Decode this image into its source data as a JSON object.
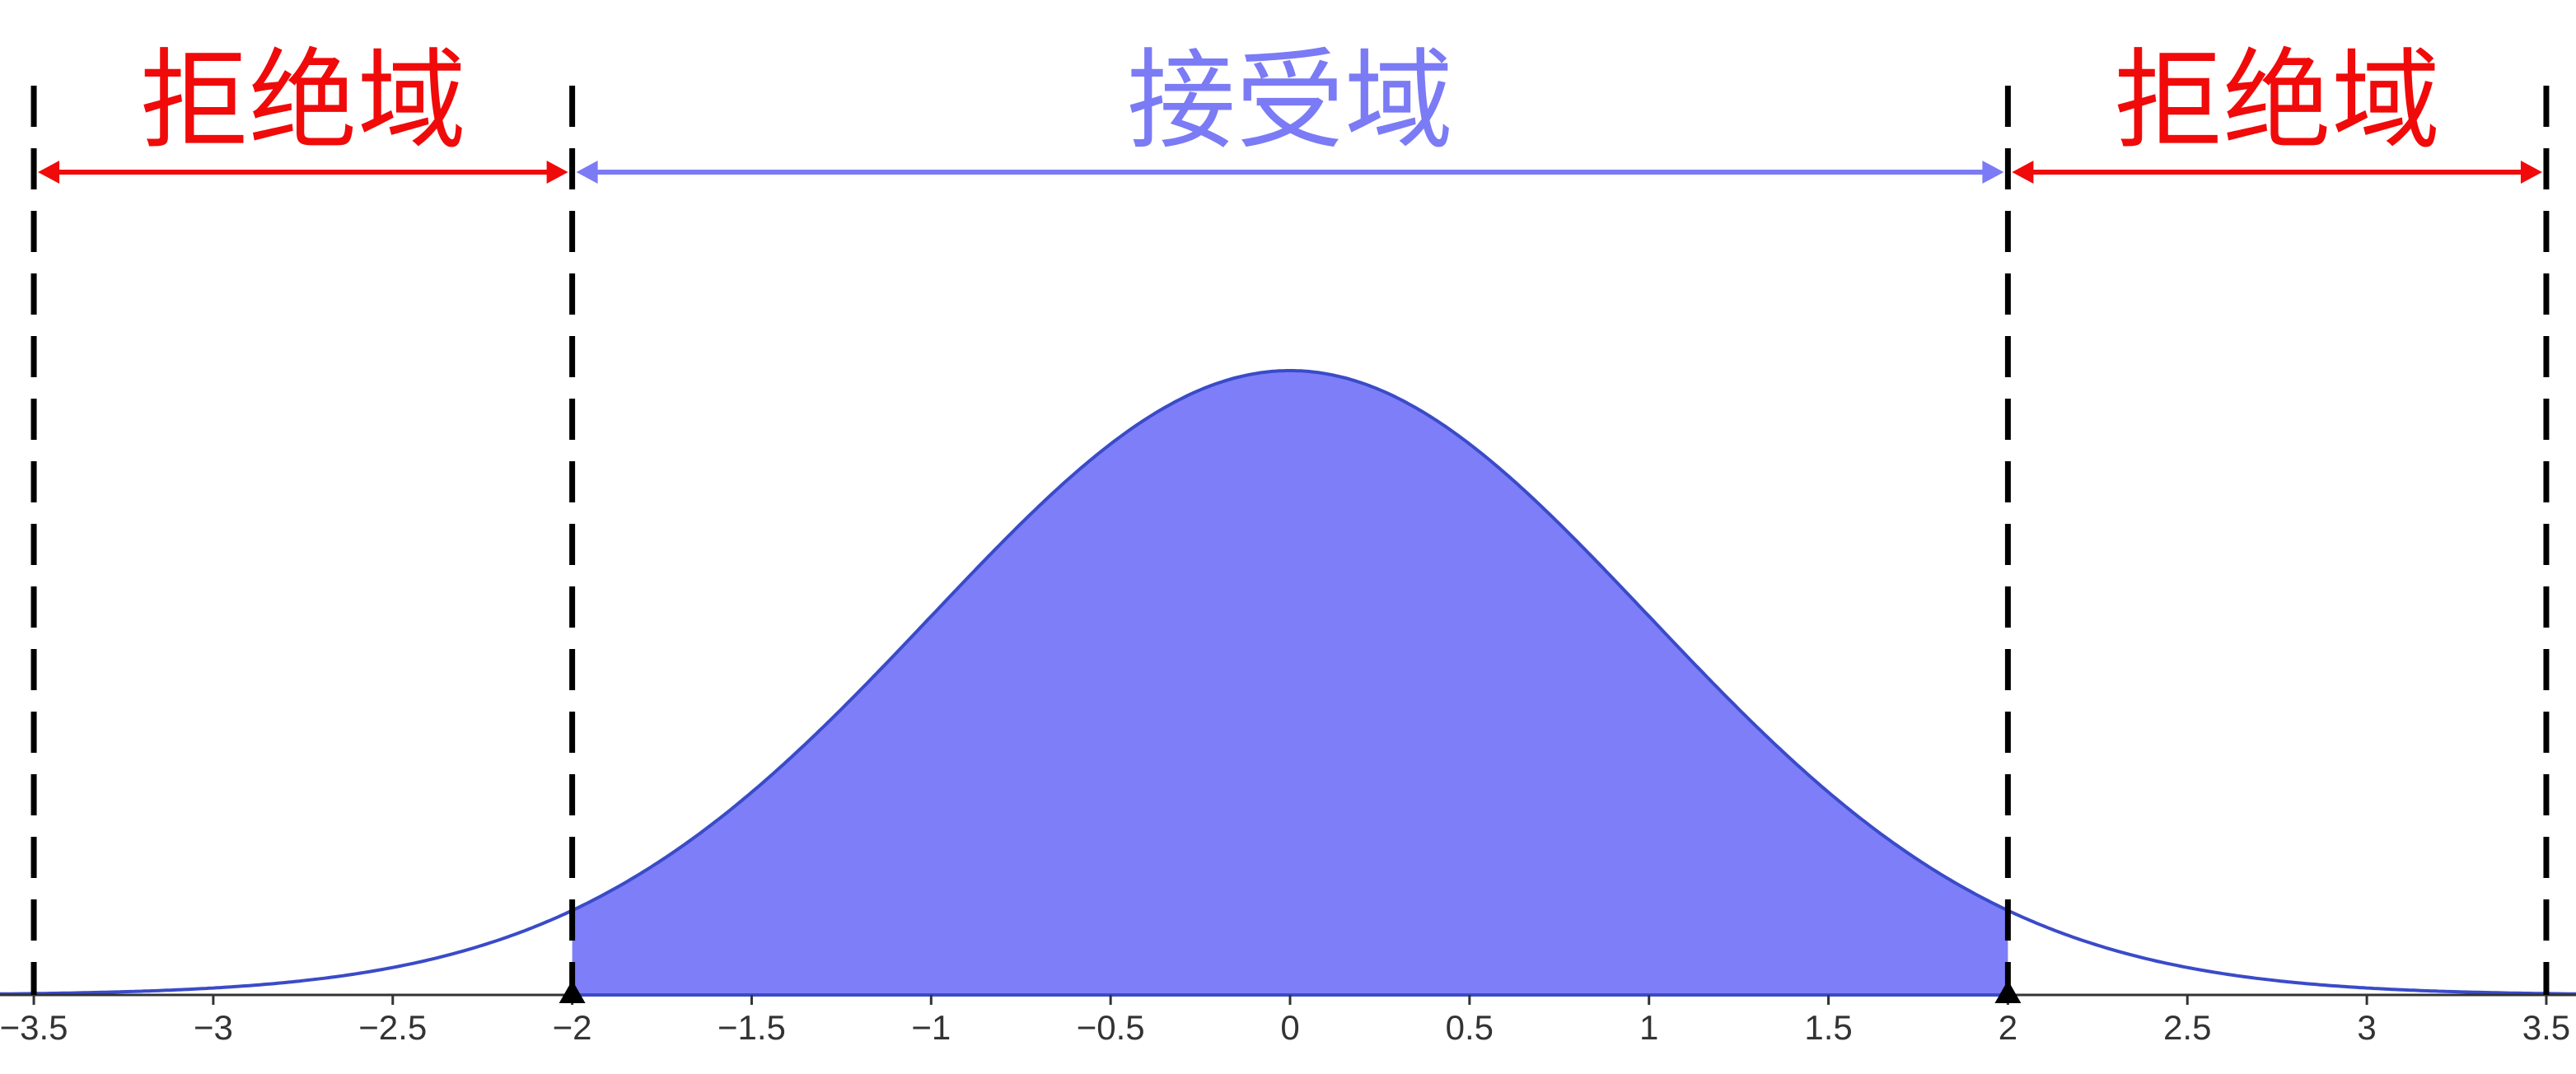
{
  "chart_data": {
    "type": "area",
    "title": "",
    "xlabel": "",
    "ylabel": "",
    "xlim": [
      -3.5,
      3.5
    ],
    "x_ticks": [
      -3.5,
      -3,
      -2.5,
      -2,
      -1.5,
      -1,
      -0.5,
      0,
      0.5,
      1,
      1.5,
      2,
      2.5,
      3,
      3.5
    ],
    "x_tick_labels": [
      "−3.5",
      "−3",
      "−2.5",
      "−2",
      "−1.5",
      "−1",
      "−0.5",
      "0",
      "0.5",
      "1",
      "1.5",
      "2",
      "2.5",
      "3",
      "3.5"
    ],
    "curve": {
      "function": "normal_pdf",
      "mean": 0,
      "sd": 1,
      "x_range": [
        -3.6,
        3.6
      ]
    },
    "shaded_interval": [
      -2,
      2
    ],
    "critical_values": [
      -2,
      2
    ],
    "boundary_lines_x": [
      -3.5,
      -2,
      2,
      3.5
    ],
    "grid": false,
    "regions": [
      {
        "label": "拒绝域",
        "x_range": [
          -3.5,
          -2
        ],
        "color": "#f00a0a"
      },
      {
        "label": "接受域",
        "x_range": [
          -2,
          2
        ],
        "color": "#7b7bf5"
      },
      {
        "label": "拒绝域",
        "x_range": [
          2,
          3.5
        ],
        "color": "#f00a0a"
      }
    ],
    "colors": {
      "curve": "#3a4bc8",
      "fill": "#7e7ef9",
      "boundary": "#000000",
      "axis": "#333333"
    }
  }
}
